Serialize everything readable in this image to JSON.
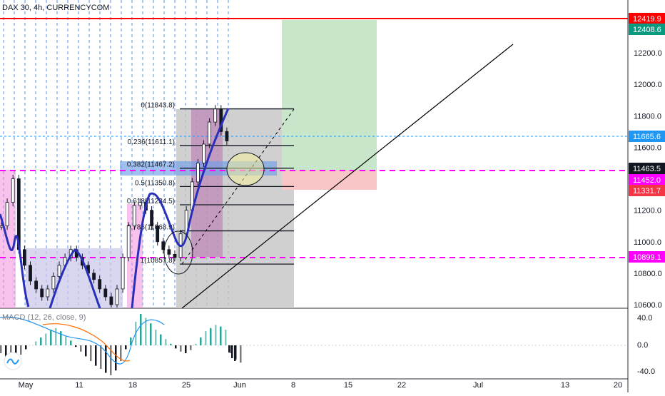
{
  "header": {
    "title": "DAX 30, 4h, CURRENCYCOM",
    "macd_label": "MACD (12, 26, close, 9)"
  },
  "colors": {
    "candle_up": "#26a69a",
    "candle_down": "#ef5350",
    "dark_candle": "#131722",
    "price_line": "#2196f3",
    "ma_line": "#1e22aa",
    "red_line": "#ff0000",
    "magenta_dash": "#ff00ff",
    "tp_zone": "#c8e6c9",
    "sl_zone": "#f8c6c6"
  },
  "price_axis": {
    "ticks": [
      "12200.0",
      "12000.0",
      "11800.0",
      "11600.0",
      "11400.0",
      "11200.0",
      "11000.0",
      "10800.0",
      "10600.0"
    ],
    "badges": [
      {
        "label": "12419.9",
        "color": "#ff0000"
      },
      {
        "label": "12408.6",
        "color": "#089981"
      },
      {
        "label": "11665.6",
        "color": "#2196f3"
      },
      {
        "label": "11463.5",
        "color": "#131722"
      },
      {
        "label": "11452.0",
        "color": "#ff00ff"
      },
      {
        "label": "11331.7",
        "color": "#f23645"
      },
      {
        "label": "10899.1",
        "color": "#ff00ff"
      }
    ]
  },
  "macd_axis": {
    "ticks": [
      "40.0",
      "0.0",
      "-40.0"
    ]
  },
  "time_axis": {
    "ticks": [
      "May",
      "11",
      "18",
      "25",
      "Jun",
      "8",
      "15",
      "22",
      "Jul",
      "13",
      "20"
    ]
  },
  "fib": {
    "levels": [
      {
        "label": "0(11843.8)",
        "price": 11843.8
      },
      {
        "label": "0.236(11611.1)",
        "price": 11611.1
      },
      {
        "label": "0.382(11467.2)",
        "price": 11467.2
      },
      {
        "label": "0.5(11350.8)",
        "price": 11350.8
      },
      {
        "label": "0.618(11234.5)",
        "price": 11234.5
      },
      {
        "label": "0.786(11068.9)",
        "price": 11068.9
      },
      {
        "label": "1(10857.8)",
        "price": 10857.8
      }
    ]
  },
  "chart_data": {
    "type": "candlestick",
    "symbol": "DAX 30",
    "interval": "4h",
    "price_range": [
      10600,
      12500
    ],
    "horizontal_levels": {
      "red_line": 12419.9,
      "take_profit": 12408.6,
      "last_price": 11665.6,
      "magenta_1": 11452.0,
      "stop_loss": 11331.7,
      "magenta_2": 10899.1
    },
    "candles_close_path": [
      [
        0,
        11100
      ],
      [
        4,
        11250
      ],
      [
        8,
        11400
      ],
      [
        12,
        10950
      ],
      [
        16,
        10850
      ],
      [
        20,
        10750
      ],
      [
        24,
        10700
      ],
      [
        28,
        10650
      ],
      [
        32,
        10700
      ],
      [
        36,
        10780
      ],
      [
        40,
        10850
      ],
      [
        44,
        10900
      ],
      [
        48,
        10950
      ],
      [
        52,
        10900
      ],
      [
        56,
        10850
      ],
      [
        60,
        10800
      ],
      [
        64,
        10760
      ],
      [
        68,
        10700
      ],
      [
        72,
        10650
      ],
      [
        76,
        10600
      ],
      [
        80,
        10700
      ],
      [
        84,
        10900
      ],
      [
        88,
        11100
      ],
      [
        92,
        11230
      ],
      [
        96,
        11250
      ],
      [
        100,
        11200
      ],
      [
        104,
        11100
      ],
      [
        108,
        11000
      ],
      [
        112,
        10950
      ],
      [
        116,
        10920
      ],
      [
        120,
        10900
      ],
      [
        124,
        11050
      ],
      [
        128,
        11200
      ],
      [
        132,
        11380
      ],
      [
        136,
        11500
      ],
      [
        140,
        11620
      ],
      [
        144,
        11760
      ],
      [
        148,
        11843
      ],
      [
        150,
        11700
      ],
      [
        152,
        11640
      ]
    ],
    "macd_histogram": [
      -10,
      -15,
      -20,
      -18,
      -12,
      -5,
      0,
      5,
      10,
      15,
      20,
      22,
      18,
      12,
      6,
      -2,
      -8,
      -14,
      -20,
      -26,
      -30,
      -35,
      -38,
      -32,
      -20,
      -5,
      10,
      30,
      40,
      35,
      28,
      20,
      14,
      8,
      2,
      -4,
      -8,
      -10,
      -6,
      2,
      10,
      18,
      22,
      26,
      24,
      20,
      -10,
      -18,
      -22
    ]
  }
}
